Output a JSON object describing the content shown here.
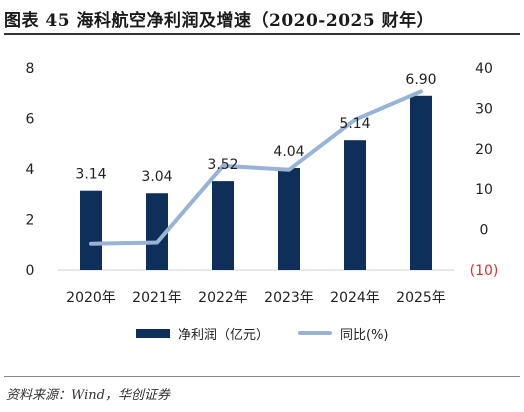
{
  "title": "图表 45  海科航空净利润及增速（2020-2025 财年）",
  "source": "资料来源：Wind，华创证券",
  "legend": {
    "bar_label": "净利润（亿元）",
    "line_label": "同比(%)"
  },
  "colors": {
    "bar": "#0e2f5a",
    "line": "#98b3d4",
    "negative_tick": "#d9302a"
  },
  "chart_data": {
    "type": "bar",
    "categories": [
      "2020年",
      "2021年",
      "2022年",
      "2023年",
      "2024年",
      "2025年"
    ],
    "series": [
      {
        "name": "净利润（亿元）",
        "type": "bar",
        "axis": "left",
        "values": [
          3.14,
          3.04,
          3.52,
          4.04,
          5.14,
          6.9
        ],
        "data_labels": [
          "3.14",
          "3.04",
          "3.52",
          "4.04",
          "5.14",
          "6.90"
        ]
      },
      {
        "name": "同比(%)",
        "type": "line",
        "axis": "right",
        "values": [
          -3.5,
          -3.2,
          15.8,
          14.8,
          27.2,
          34.2
        ]
      }
    ],
    "left_axis": {
      "ylim": [
        0,
        8
      ],
      "ticks": [
        "0",
        "2",
        "4",
        "6",
        "8"
      ],
      "tick_values": [
        0,
        2,
        4,
        6,
        8
      ]
    },
    "right_axis": {
      "ylim": [
        -10,
        40
      ],
      "ticks": [
        "(10)",
        "0",
        "10",
        "20",
        "30",
        "40"
      ],
      "tick_values": [
        -10,
        0,
        10,
        20,
        30,
        40
      ]
    },
    "grid": false,
    "legend_position": "bottom"
  }
}
